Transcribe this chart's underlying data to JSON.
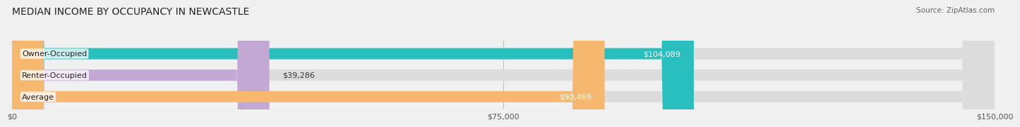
{
  "title": "MEDIAN INCOME BY OCCUPANCY IN NEWCASTLE",
  "source": "Source: ZipAtlas.com",
  "categories": [
    "Owner-Occupied",
    "Renter-Occupied",
    "Average"
  ],
  "values": [
    104089,
    39286,
    90469
  ],
  "bar_colors": [
    "#2abfbf",
    "#c4a8d4",
    "#f5b86e"
  ],
  "value_labels": [
    "$104,089",
    "$39,286",
    "$90,469"
  ],
  "xlim": [
    0,
    150000
  ],
  "xticks": [
    0,
    75000,
    150000
  ],
  "xtick_labels": [
    "$0",
    "$75,000",
    "$150,000"
  ],
  "title_fontsize": 10,
  "source_fontsize": 7.5,
  "label_fontsize": 8,
  "value_fontsize": 8,
  "bar_height": 0.52,
  "background_color": "#f0f0f0"
}
